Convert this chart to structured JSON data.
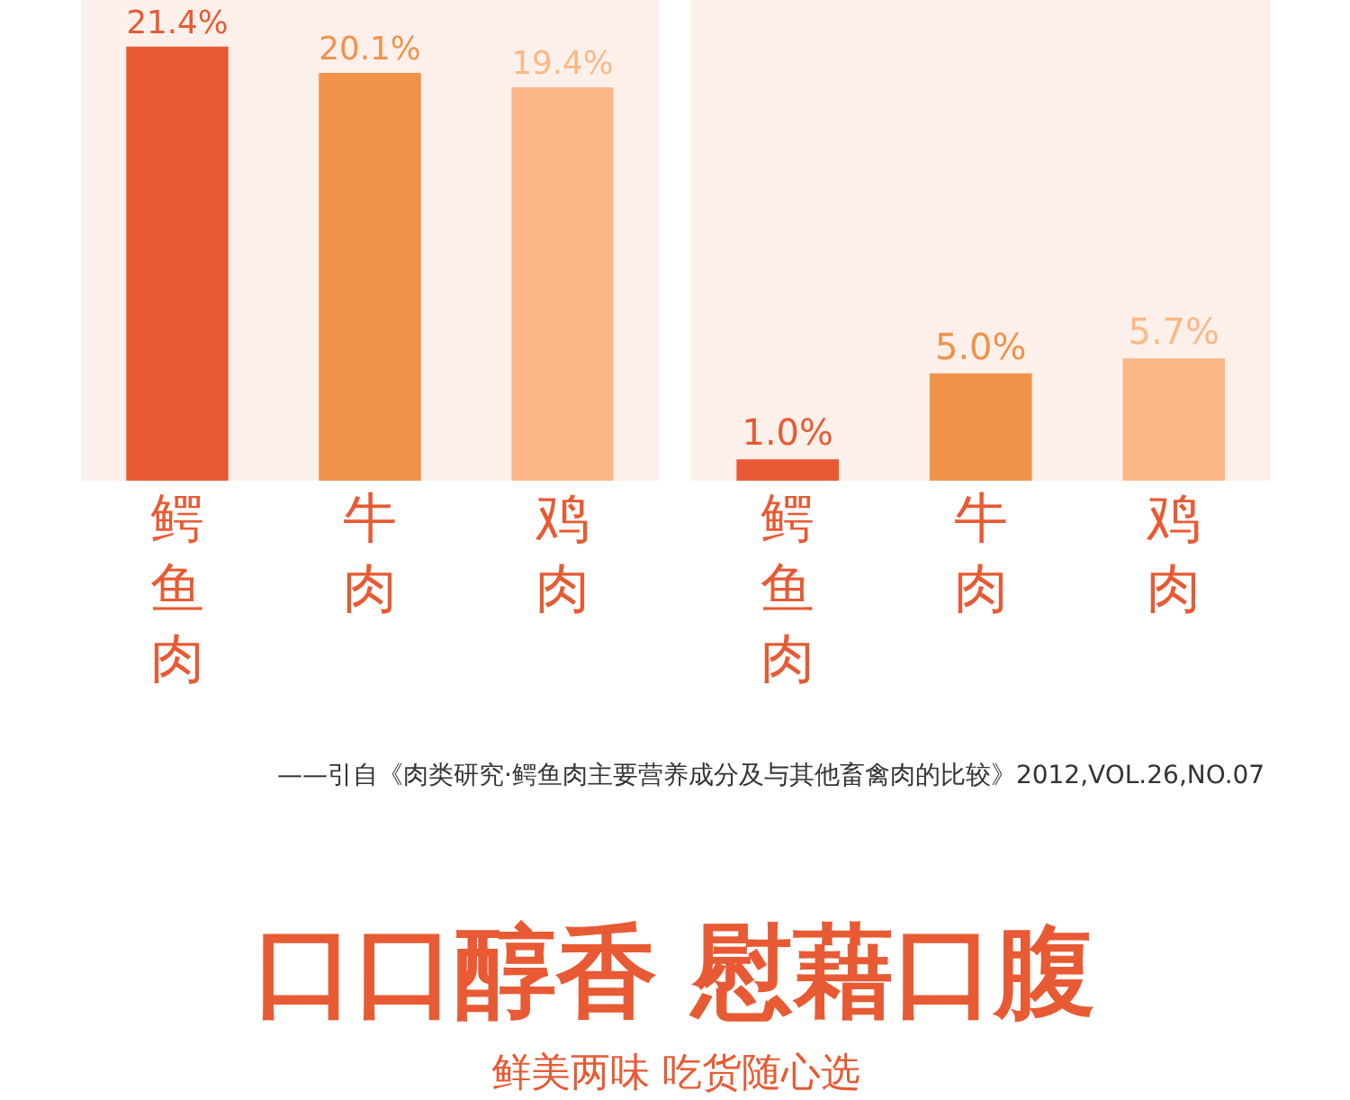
{
  "chart_data": [
    {
      "type": "bar",
      "categories": [
        "鳄鱼肉",
        "牛肉",
        "鸡肉"
      ],
      "values": [
        21.4,
        20.1,
        19.4
      ],
      "colors": [
        "#e85a33",
        "#f0924a",
        "#fbb886"
      ],
      "value_labels": [
        "21.4%",
        "20.1%",
        "19.4%"
      ],
      "ylim": [
        0,
        23.7
      ],
      "tick_labels": "x",
      "grid": false,
      "annotations": [
        "——引自《肉类研究·鳄鱼肉主要营养成分及与其他畜禽肉的比较》2012,VOL.26,NO.07",
        "口口醇香 慰藉口腹",
        "鲜美两味 吃货随心选"
      ]
    },
    {
      "type": "bar",
      "categories": [
        "鳄鱼肉",
        "牛肉",
        "鸡肉"
      ],
      "values": [
        1.0,
        5.0,
        5.7
      ],
      "colors": [
        "#e85a33",
        "#f0924a",
        "#fbb886"
      ],
      "value_labels": [
        "1.0%",
        "5.0%",
        "5.7%"
      ],
      "ylim": [
        0,
        22.4
      ],
      "tick_labels": "x",
      "grid": false
    }
  ]
}
